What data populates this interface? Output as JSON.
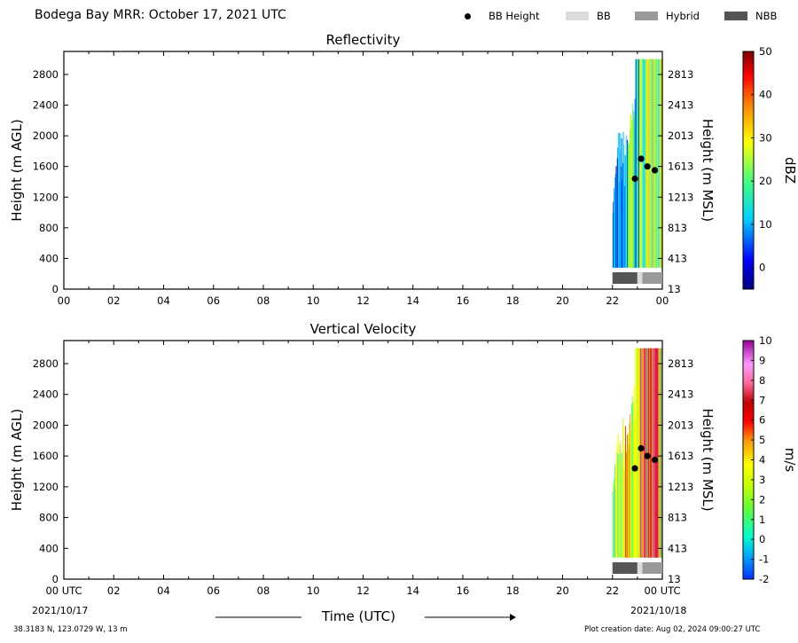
{
  "header": {
    "title": "Bodega Bay MRR:  October 17, 2021 UTC",
    "legend": [
      {
        "label": "BB Height",
        "kind": "dot",
        "color": "#000000"
      },
      {
        "label": "BB",
        "kind": "swatch",
        "color": "#dcdcdc"
      },
      {
        "label": "Hybrid",
        "kind": "swatch",
        "color": "#999999"
      },
      {
        "label": "NBB",
        "kind": "swatch",
        "color": "#555555"
      }
    ]
  },
  "chart_data": [
    {
      "type": "heatmap",
      "title": "Reflectivity",
      "ylabel": "Height (m AGL)",
      "ylabel_right": "Height (m MSL)",
      "ylim": [
        0,
        3100
      ],
      "xlim": [
        0,
        24
      ],
      "x_ticks": [
        "00",
        "02",
        "04",
        "06",
        "08",
        "10",
        "12",
        "14",
        "16",
        "18",
        "20",
        "22",
        "00"
      ],
      "y_ticks": [
        0,
        400,
        800,
        1200,
        1600,
        2000,
        2400,
        2800
      ],
      "y_ticks_right": [
        "13",
        "413",
        "813",
        "1213",
        "1613",
        "2013",
        "2413",
        "2813"
      ],
      "colorbar": {
        "label": "dBZ",
        "min": -5,
        "max": 50,
        "ticks": [
          0,
          10,
          20,
          30,
          40,
          50
        ]
      },
      "bb_height_points": [
        {
          "t": 22.9,
          "h": 1440
        },
        {
          "t": 23.15,
          "h": 1700
        },
        {
          "t": 23.4,
          "h": 1600
        },
        {
          "t": 23.7,
          "h": 1550
        }
      ],
      "bb_type_bar": [
        {
          "start": 22.0,
          "end": 23.0,
          "type": "NBB"
        },
        {
          "start": 23.0,
          "end": 23.2,
          "type": "BB"
        },
        {
          "start": 23.2,
          "end": 24.0,
          "type": "Hybrid"
        }
      ]
    },
    {
      "type": "heatmap",
      "title": "Vertical Velocity",
      "ylabel": "Height (m AGL)",
      "ylabel_right": "Height (m MSL)",
      "ylim": [
        0,
        3100
      ],
      "xlim": [
        0,
        24
      ],
      "x_ticks": [
        "00 UTC",
        "02",
        "04",
        "06",
        "08",
        "10",
        "12",
        "14",
        "16",
        "18",
        "20",
        "22",
        "00 UTC"
      ],
      "y_ticks": [
        0,
        400,
        800,
        1200,
        1600,
        2000,
        2400,
        2800
      ],
      "y_ticks_right": [
        "13",
        "413",
        "813",
        "1213",
        "1613",
        "2013",
        "2413",
        "2813"
      ],
      "colorbar": {
        "label": "m/s",
        "min": -2,
        "max": 10,
        "ticks": [
          -2,
          -1,
          0,
          1,
          2,
          3,
          4,
          5,
          6,
          7,
          8,
          9,
          10
        ]
      },
      "bb_height_points": [
        {
          "t": 22.9,
          "h": 1440
        },
        {
          "t": 23.15,
          "h": 1700
        },
        {
          "t": 23.4,
          "h": 1600
        },
        {
          "t": 23.7,
          "h": 1550
        }
      ],
      "bb_type_bar": [
        {
          "start": 22.0,
          "end": 23.0,
          "type": "NBB"
        },
        {
          "start": 23.0,
          "end": 23.2,
          "type": "BB"
        },
        {
          "start": 23.2,
          "end": 24.0,
          "type": "Hybrid"
        }
      ],
      "start_date": "2021/10/17",
      "end_date": "2021/10/18",
      "xlabel": "Time (UTC)"
    }
  ],
  "footer": {
    "location": "38.3183 N, 123.0729 W, 13 m",
    "created": "Plot creation date: Aug 02, 2024 09:00:27 UTC"
  }
}
